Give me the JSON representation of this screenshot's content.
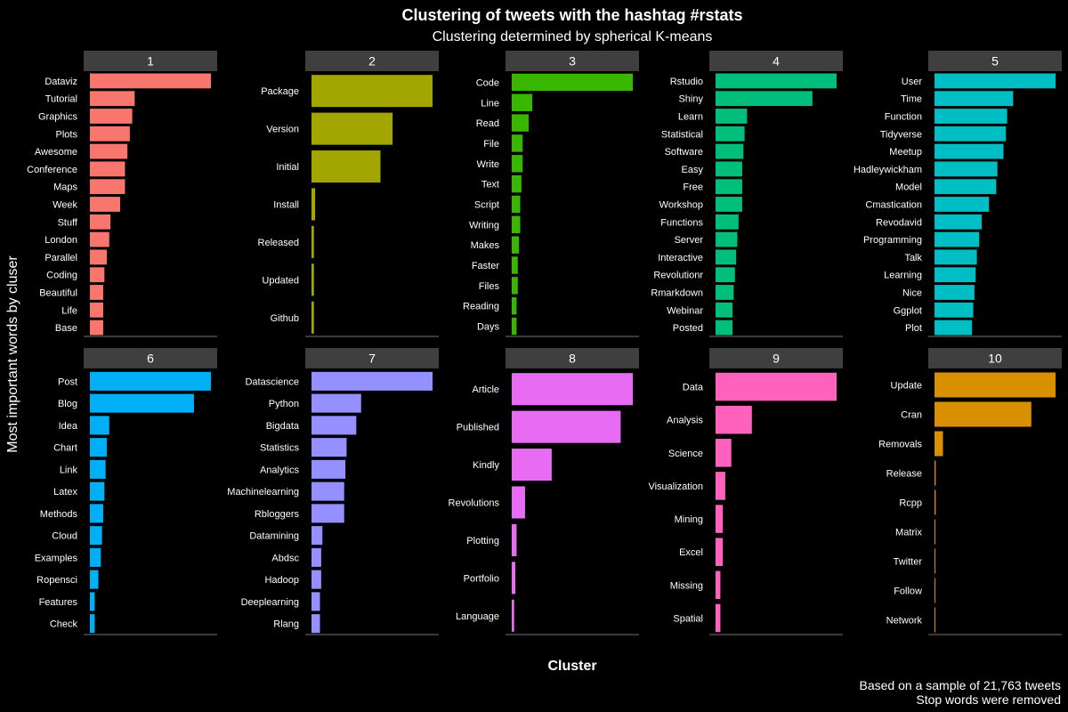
{
  "chart_data": {
    "type": "bar",
    "orientation": "horizontal",
    "title": "Clustering of tweets with the hashtag #rstats",
    "subtitle": "Clustering determined by spherical K-means",
    "xlabel": "Cluster",
    "ylabel": "Most important words by cluser",
    "caption": [
      "Based on a sample of 21,763 tweets",
      "Stop words were removed"
    ],
    "xlim": [
      0,
      1
    ],
    "facets": [
      {
        "label": "1",
        "color": "#F8766D",
        "categories": [
          "Dataviz",
          "Tutorial",
          "Graphics",
          "Plots",
          "Awesome",
          "Conference",
          "Maps",
          "Week",
          "Stuff",
          "London",
          "Parallel",
          "Coding",
          "Beautiful",
          "Life",
          "Base"
        ],
        "values": [
          1.0,
          0.37,
          0.35,
          0.33,
          0.31,
          0.29,
          0.29,
          0.25,
          0.17,
          0.16,
          0.14,
          0.12,
          0.11,
          0.11,
          0.11
        ]
      },
      {
        "label": "2",
        "color": "#A3A500",
        "categories": [
          "Package",
          "Version",
          "Initial",
          "Install",
          "Released",
          "Updated",
          "Github"
        ],
        "values": [
          1.0,
          0.67,
          0.57,
          0.03,
          0.02,
          0.02,
          0.02
        ]
      },
      {
        "label": "3",
        "color": "#39B600",
        "categories": [
          "Code",
          "Line",
          "Read",
          "File",
          "Write",
          "Text",
          "Script",
          "Writing",
          "Makes",
          "Faster",
          "Files",
          "Reading",
          "Days"
        ],
        "values": [
          1.0,
          0.17,
          0.14,
          0.09,
          0.09,
          0.08,
          0.07,
          0.07,
          0.06,
          0.05,
          0.05,
          0.04,
          0.04
        ]
      },
      {
        "label": "4",
        "color": "#00BF7D",
        "categories": [
          "Rstudio",
          "Shiny",
          "Learn",
          "Statistical",
          "Software",
          "Easy",
          "Free",
          "Workshop",
          "Functions",
          "Server",
          "Interactive",
          "Revolutionr",
          "Rmarkdown",
          "Webinar",
          "Posted"
        ],
        "values": [
          1.0,
          0.8,
          0.26,
          0.24,
          0.23,
          0.22,
          0.22,
          0.22,
          0.19,
          0.18,
          0.17,
          0.16,
          0.15,
          0.14,
          0.14
        ]
      },
      {
        "label": "5",
        "color": "#00BFC4",
        "categories": [
          "User",
          "Time",
          "Function",
          "Tidyverse",
          "Meetup",
          "Hadleywickham",
          "Model",
          "Cmastication",
          "Revodavid",
          "Programming",
          "Talk",
          "Learning",
          "Nice",
          "Ggplot",
          "Plot"
        ],
        "values": [
          1.0,
          0.65,
          0.6,
          0.59,
          0.57,
          0.52,
          0.51,
          0.45,
          0.39,
          0.37,
          0.35,
          0.34,
          0.33,
          0.32,
          0.31
        ]
      },
      {
        "label": "6",
        "color": "#00B0F6",
        "categories": [
          "Post",
          "Blog",
          "Idea",
          "Chart",
          "Link",
          "Latex",
          "Methods",
          "Cloud",
          "Examples",
          "Ropensci",
          "Features",
          "Check"
        ],
        "values": [
          1.0,
          0.86,
          0.16,
          0.14,
          0.13,
          0.12,
          0.11,
          0.1,
          0.09,
          0.07,
          0.04,
          0.04
        ]
      },
      {
        "label": "7",
        "color": "#9590FF",
        "categories": [
          "Datascience",
          "Python",
          "Bigdata",
          "Statistics",
          "Analytics",
          "Machinelearning",
          "Rbloggers",
          "Datamining",
          "Abdsc",
          "Hadoop",
          "Deeplearning",
          "Rlang"
        ],
        "values": [
          1.0,
          0.41,
          0.37,
          0.29,
          0.28,
          0.27,
          0.27,
          0.09,
          0.08,
          0.08,
          0.07,
          0.07
        ]
      },
      {
        "label": "8",
        "color": "#E76BF3",
        "categories": [
          "Article",
          "Published",
          "Kindly",
          "Revolutions",
          "Plotting",
          "Portfolio",
          "Language"
        ],
        "values": [
          1.0,
          0.9,
          0.33,
          0.11,
          0.04,
          0.03,
          0.02
        ]
      },
      {
        "label": "9",
        "color": "#FF62BC",
        "categories": [
          "Data",
          "Analysis",
          "Science",
          "Visualization",
          "Mining",
          "Excel",
          "Missing",
          "Spatial"
        ],
        "values": [
          1.0,
          0.3,
          0.13,
          0.08,
          0.06,
          0.06,
          0.04,
          0.04
        ]
      },
      {
        "label": "10",
        "color": "#D89000",
        "categories": [
          "Update",
          "Cran",
          "Removals",
          "Release",
          "Rcpp",
          "Matrix",
          "Twitter",
          "Follow",
          "Network"
        ],
        "values": [
          1.0,
          0.8,
          0.07,
          0.01,
          0.01,
          0.005,
          0.005,
          0.005,
          0.005
        ]
      }
    ]
  }
}
